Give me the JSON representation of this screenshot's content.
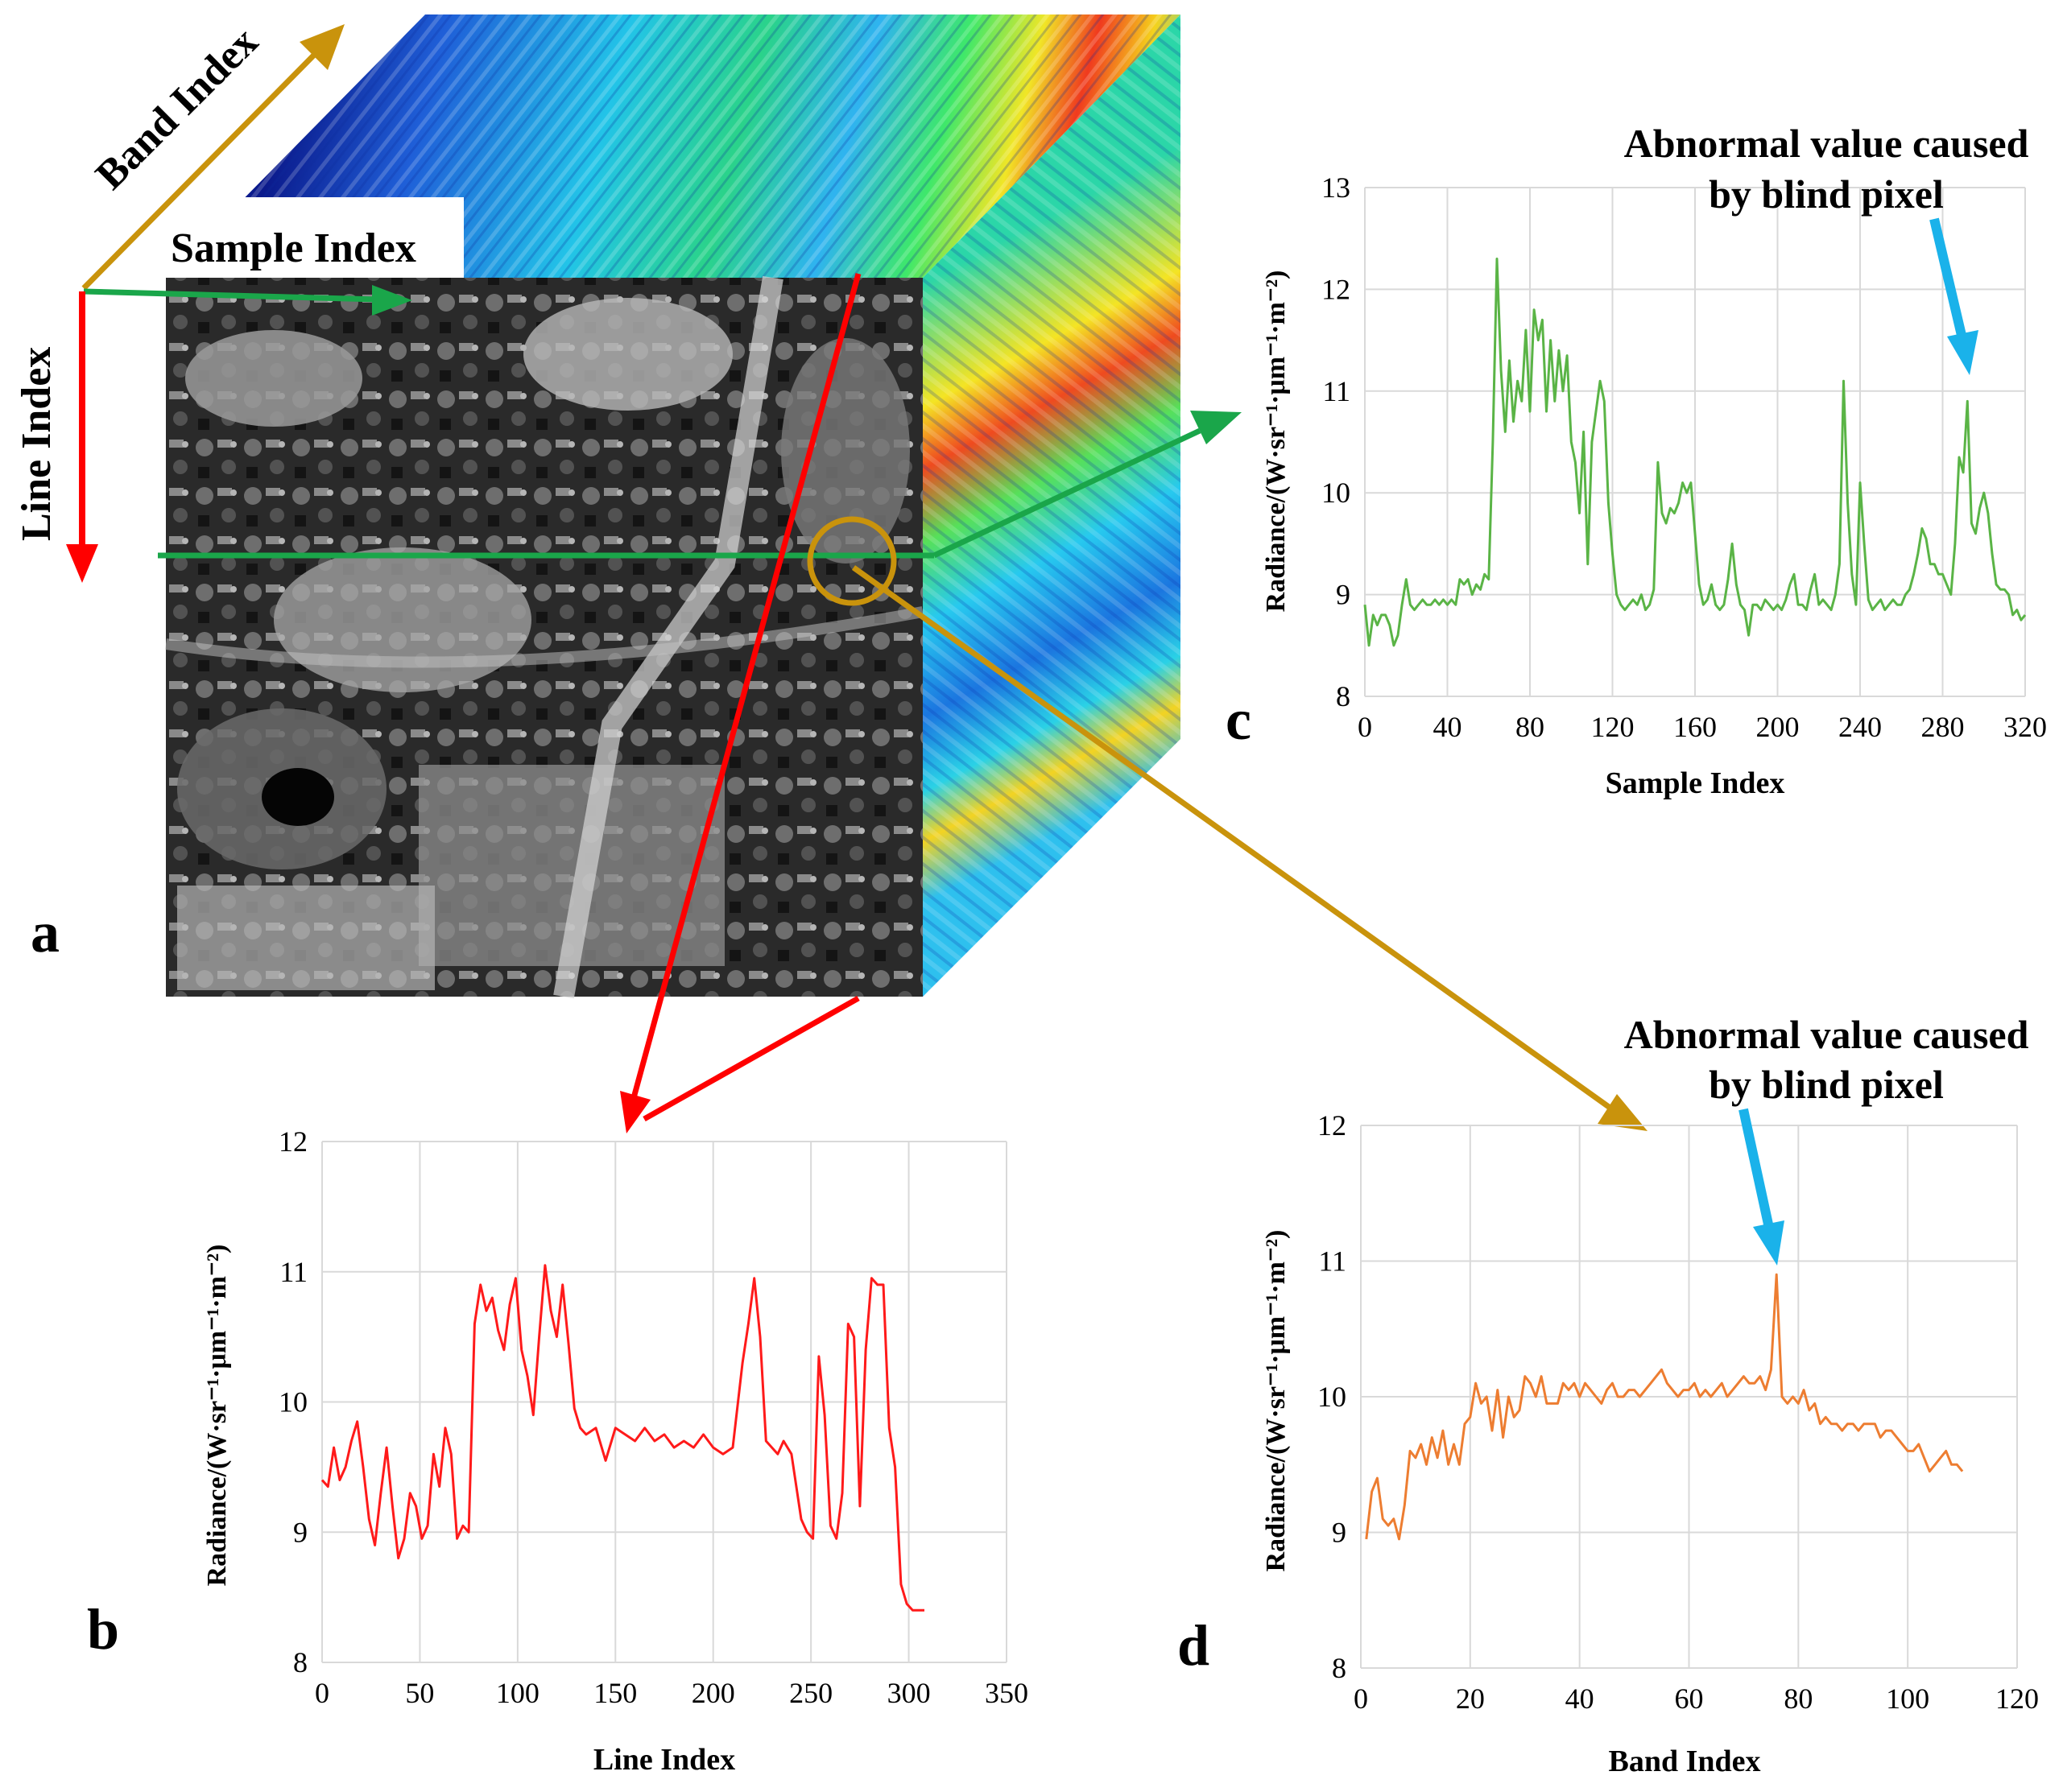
{
  "panel_letters": {
    "a": "a",
    "b": "b",
    "c": "c",
    "d": "d"
  },
  "cube": {
    "band_axis_label": "Band Index",
    "sample_axis_label": "Sample Index",
    "line_axis_label": "Line Index"
  },
  "colors": {
    "line_profile": "#ff1a1a",
    "sample_profile": "#5ab446",
    "band_profile": "#ed7d31",
    "arrow_red": "#ff0000",
    "arrow_green": "#1aa64a",
    "arrow_gold": "#c9930c",
    "annotation_arrow": "#1ab2ea"
  },
  "chart_data": [
    {
      "id": "b",
      "type": "line",
      "xlabel": "Line Index",
      "ylabel": "Radiance/(W·sr⁻¹·μm⁻¹·m⁻²)",
      "xlim": [
        0,
        350
      ],
      "ylim": [
        8,
        12
      ],
      "xticks": [
        0,
        50,
        100,
        150,
        200,
        250,
        300,
        350
      ],
      "yticks": [
        8,
        9,
        10,
        11,
        12
      ],
      "x": [
        0,
        3,
        6,
        9,
        12,
        15,
        18,
        21,
        24,
        27,
        30,
        33,
        36,
        39,
        42,
        45,
        48,
        51,
        54,
        57,
        60,
        63,
        66,
        69,
        72,
        75,
        78,
        81,
        84,
        87,
        90,
        93,
        96,
        99,
        102,
        105,
        108,
        111,
        114,
        117,
        120,
        123,
        126,
        129,
        132,
        135,
        140,
        145,
        150,
        155,
        160,
        165,
        170,
        175,
        180,
        185,
        190,
        195,
        200,
        205,
        210,
        215,
        218,
        221,
        224,
        227,
        230,
        233,
        236,
        240,
        245,
        248,
        251,
        254,
        257,
        260,
        263,
        266,
        269,
        272,
        275,
        278,
        281,
        284,
        287,
        290,
        293,
        296,
        299,
        302,
        305,
        308
      ],
      "values": [
        9.4,
        9.35,
        9.65,
        9.4,
        9.5,
        9.7,
        9.85,
        9.5,
        9.1,
        8.9,
        9.3,
        9.65,
        9.2,
        8.8,
        8.95,
        9.3,
        9.2,
        8.95,
        9.05,
        9.6,
        9.35,
        9.8,
        9.6,
        8.95,
        9.05,
        9.0,
        10.6,
        10.9,
        10.7,
        10.8,
        10.55,
        10.4,
        10.75,
        10.95,
        10.4,
        10.2,
        9.9,
        10.5,
        11.05,
        10.7,
        10.5,
        10.9,
        10.45,
        9.95,
        9.8,
        9.75,
        9.8,
        9.55,
        9.8,
        9.75,
        9.7,
        9.8,
        9.7,
        9.75,
        9.65,
        9.7,
        9.65,
        9.75,
        9.65,
        9.6,
        9.65,
        10.3,
        10.6,
        10.95,
        10.5,
        9.7,
        9.65,
        9.6,
        9.7,
        9.6,
        9.1,
        9.0,
        8.95,
        10.35,
        9.9,
        9.05,
        8.95,
        9.3,
        10.6,
        10.5,
        9.2,
        10.4,
        10.95,
        10.9,
        10.9,
        9.8,
        9.5,
        8.6,
        8.45,
        8.4,
        8.4,
        8.4
      ]
    },
    {
      "id": "c",
      "type": "line",
      "xlabel": "Sample Index",
      "ylabel": "Radiance/(W·sr⁻¹·μm⁻¹·m⁻²)",
      "xlim": [
        0,
        320
      ],
      "ylim": [
        8,
        13
      ],
      "xticks": [
        0,
        40,
        80,
        120,
        160,
        200,
        240,
        280,
        320
      ],
      "yticks": [
        8,
        9,
        10,
        11,
        12,
        13
      ],
      "annotation": {
        "line1": "Abnormal value caused",
        "line2": "by blind pixel",
        "x": 289,
        "y": 10.9
      },
      "x": [
        0,
        2,
        4,
        6,
        8,
        10,
        12,
        14,
        16,
        18,
        20,
        22,
        24,
        26,
        28,
        30,
        32,
        34,
        36,
        38,
        40,
        42,
        44,
        46,
        48,
        50,
        52,
        54,
        56,
        58,
        60,
        62,
        64,
        66,
        68,
        70,
        72,
        74,
        76,
        78,
        80,
        82,
        84,
        86,
        88,
        90,
        92,
        94,
        96,
        98,
        100,
        102,
        104,
        106,
        108,
        110,
        112,
        114,
        116,
        118,
        120,
        122,
        124,
        126,
        128,
        130,
        132,
        134,
        136,
        138,
        140,
        142,
        144,
        146,
        148,
        150,
        152,
        154,
        156,
        158,
        160,
        162,
        164,
        166,
        168,
        170,
        172,
        174,
        176,
        178,
        180,
        182,
        184,
        186,
        188,
        190,
        192,
        194,
        196,
        198,
        200,
        202,
        204,
        206,
        208,
        210,
        212,
        214,
        216,
        218,
        220,
        222,
        224,
        226,
        228,
        230,
        232,
        234,
        236,
        238,
        240,
        242,
        244,
        246,
        248,
        250,
        252,
        254,
        256,
        258,
        260,
        262,
        264,
        266,
        268,
        270,
        272,
        274,
        276,
        278,
        280,
        282,
        284,
        286,
        288,
        290,
        292,
        294,
        296,
        298,
        300,
        302,
        304,
        306,
        308,
        310,
        312,
        314,
        316,
        318,
        320
      ],
      "values": [
        8.9,
        8.5,
        8.8,
        8.7,
        8.8,
        8.8,
        8.7,
        8.5,
        8.6,
        8.9,
        9.15,
        8.9,
        8.85,
        8.9,
        8.95,
        8.9,
        8.9,
        8.95,
        8.9,
        8.95,
        8.9,
        8.95,
        8.9,
        9.15,
        9.1,
        9.15,
        9.0,
        9.1,
        9.05,
        9.2,
        9.15,
        10.5,
        12.3,
        11.2,
        10.6,
        11.3,
        10.7,
        11.1,
        10.9,
        11.6,
        10.8,
        11.8,
        11.5,
        11.7,
        10.8,
        11.5,
        10.9,
        11.4,
        11.0,
        11.35,
        10.5,
        10.3,
        9.8,
        10.6,
        9.3,
        10.5,
        10.8,
        11.1,
        10.9,
        9.9,
        9.4,
        9.0,
        8.9,
        8.85,
        8.9,
        8.95,
        8.9,
        9.0,
        8.85,
        8.9,
        9.05,
        10.3,
        9.8,
        9.7,
        9.85,
        9.8,
        9.9,
        10.1,
        10.0,
        10.1,
        9.6,
        9.1,
        8.9,
        8.95,
        9.1,
        8.9,
        8.85,
        8.9,
        9.15,
        9.5,
        9.1,
        8.9,
        8.85,
        8.6,
        8.9,
        8.9,
        8.85,
        8.95,
        8.9,
        8.85,
        8.9,
        8.85,
        8.95,
        9.1,
        9.2,
        8.9,
        8.9,
        8.85,
        9.05,
        9.2,
        8.9,
        8.95,
        8.9,
        8.85,
        9.0,
        9.3,
        11.1,
        9.9,
        9.2,
        8.9,
        10.1,
        9.5,
        8.95,
        8.85,
        8.9,
        8.95,
        8.85,
        8.9,
        8.95,
        8.9,
        8.9,
        9.0,
        9.05,
        9.2,
        9.4,
        9.65,
        9.55,
        9.3,
        9.3,
        9.2,
        9.2,
        9.1,
        9.0,
        9.5,
        10.35,
        10.2,
        10.9,
        9.7,
        9.6,
        9.85,
        10.0,
        9.8,
        9.4,
        9.1,
        9.05,
        9.05,
        9.0,
        8.8,
        8.85,
        8.75,
        8.8
      ]
    },
    {
      "id": "d",
      "type": "line",
      "xlabel": "Band Index",
      "ylabel": "Radiance/(W·sr⁻¹·μm⁻¹·m⁻²)",
      "xlim": [
        0,
        120
      ],
      "ylim": [
        8,
        12
      ],
      "xticks": [
        0,
        20,
        40,
        60,
        80,
        100,
        120
      ],
      "yticks": [
        8,
        9,
        10,
        11,
        12
      ],
      "annotation": {
        "line1": "Abnormal value caused",
        "line2": "by blind pixel",
        "x": 76,
        "y": 10.9
      },
      "x": [
        1,
        2,
        3,
        4,
        5,
        6,
        7,
        8,
        9,
        10,
        11,
        12,
        13,
        14,
        15,
        16,
        17,
        18,
        19,
        20,
        21,
        22,
        23,
        24,
        25,
        26,
        27,
        28,
        29,
        30,
        31,
        32,
        33,
        34,
        35,
        36,
        37,
        38,
        39,
        40,
        41,
        42,
        43,
        44,
        45,
        46,
        47,
        48,
        49,
        50,
        51,
        52,
        53,
        54,
        55,
        56,
        57,
        58,
        59,
        60,
        61,
        62,
        63,
        64,
        65,
        66,
        67,
        68,
        69,
        70,
        71,
        72,
        73,
        74,
        75,
        76,
        77,
        78,
        79,
        80,
        81,
        82,
        83,
        84,
        85,
        86,
        87,
        88,
        89,
        90,
        91,
        92,
        93,
        94,
        95,
        96,
        97,
        98,
        99,
        100,
        101,
        102,
        103,
        104,
        105,
        106,
        107,
        108,
        109,
        110
      ],
      "values": [
        8.95,
        9.3,
        9.4,
        9.1,
        9.05,
        9.1,
        8.95,
        9.2,
        9.6,
        9.55,
        9.65,
        9.5,
        9.7,
        9.55,
        9.75,
        9.5,
        9.65,
        9.5,
        9.8,
        9.85,
        10.1,
        9.95,
        10.0,
        9.75,
        10.05,
        9.7,
        10.0,
        9.85,
        9.9,
        10.15,
        10.1,
        10.0,
        10.15,
        9.95,
        9.95,
        9.95,
        10.1,
        10.05,
        10.1,
        10.0,
        10.1,
        10.05,
        10.0,
        9.95,
        10.05,
        10.1,
        10.0,
        10.0,
        10.05,
        10.05,
        10.0,
        10.05,
        10.1,
        10.15,
        10.2,
        10.1,
        10.05,
        10.0,
        10.05,
        10.05,
        10.1,
        10.0,
        10.05,
        10.0,
        10.05,
        10.1,
        10.0,
        10.05,
        10.1,
        10.15,
        10.1,
        10.1,
        10.15,
        10.05,
        10.2,
        10.9,
        10.0,
        9.95,
        10.0,
        9.95,
        10.05,
        9.9,
        9.95,
        9.8,
        9.85,
        9.8,
        9.8,
        9.75,
        9.8,
        9.8,
        9.75,
        9.8,
        9.8,
        9.8,
        9.7,
        9.75,
        9.75,
        9.7,
        9.65,
        9.6,
        9.6,
        9.65,
        9.55,
        9.45,
        9.5,
        9.55,
        9.6,
        9.5,
        9.5,
        9.45
      ]
    }
  ]
}
